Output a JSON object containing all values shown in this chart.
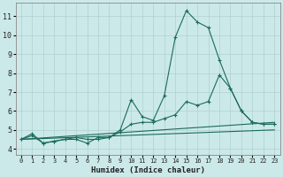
{
  "title": "",
  "xlabel": "Humidex (Indice chaleur)",
  "ylabel": "",
  "bg_color": "#cce9e9",
  "line_color": "#1a6b5a",
  "grid_color": "#b0d0d0",
  "xlim": [
    -0.5,
    23.5
  ],
  "ylim": [
    3.7,
    11.7
  ],
  "yticks": [
    4,
    5,
    6,
    7,
    8,
    9,
    10,
    11
  ],
  "xticks": [
    0,
    1,
    2,
    3,
    4,
    5,
    6,
    7,
    8,
    9,
    10,
    11,
    12,
    13,
    14,
    15,
    16,
    17,
    18,
    19,
    20,
    21,
    22,
    23
  ],
  "series": [
    {
      "x": [
        0,
        1,
        2,
        3,
        4,
        5,
        6,
        7,
        8,
        9,
        10,
        11,
        12,
        13,
        14,
        15,
        16,
        17,
        18,
        19,
        20,
        21,
        22,
        23
      ],
      "y": [
        4.5,
        4.8,
        4.3,
        4.4,
        4.5,
        4.5,
        4.3,
        4.6,
        4.6,
        5.0,
        6.6,
        5.7,
        5.5,
        6.8,
        9.9,
        11.3,
        10.7,
        10.4,
        8.7,
        7.2,
        6.0,
        5.4,
        5.3,
        5.3
      ]
    },
    {
      "x": [
        0,
        1,
        2,
        3,
        4,
        5,
        6,
        7,
        8,
        9,
        10,
        11,
        12,
        13,
        14,
        15,
        16,
        17,
        18,
        19,
        20,
        21,
        22,
        23
      ],
      "y": [
        4.5,
        4.7,
        4.3,
        4.4,
        4.5,
        4.6,
        4.5,
        4.5,
        4.6,
        4.9,
        5.3,
        5.4,
        5.4,
        5.6,
        5.8,
        6.5,
        6.3,
        6.5,
        7.9,
        7.2,
        6.0,
        5.4,
        5.3,
        5.3
      ]
    },
    {
      "x": [
        0,
        23
      ],
      "y": [
        4.5,
        5.4
      ]
    },
    {
      "x": [
        0,
        23
      ],
      "y": [
        4.5,
        5.0
      ]
    }
  ]
}
